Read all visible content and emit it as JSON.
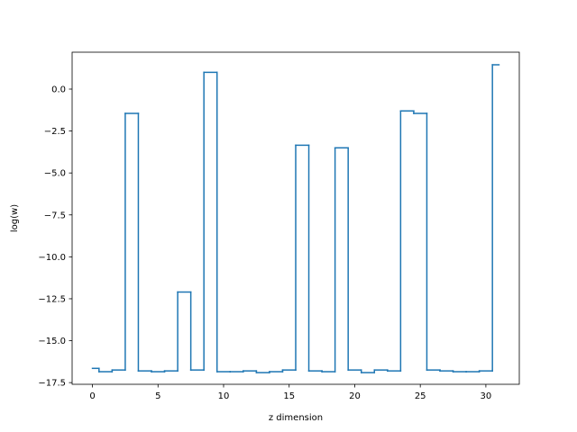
{
  "chart_data": {
    "type": "line",
    "step": "mid",
    "title": "",
    "xlabel": "z dimension",
    "ylabel": "log(w)",
    "xlim": [
      -1.55,
      32.55
    ],
    "ylim": [
      -17.6,
      2.2
    ],
    "grid": false,
    "line_color": "#1f77b4",
    "xticks": [
      0,
      5,
      10,
      15,
      20,
      25,
      30
    ],
    "xtick_labels": [
      "0",
      "5",
      "10",
      "15",
      "20",
      "25",
      "30"
    ],
    "yticks": [
      0.0,
      -2.5,
      -5.0,
      -7.5,
      -10.0,
      -12.5,
      -15.0,
      -17.5
    ],
    "ytick_labels": [
      "0.0",
      "−2.5",
      "−5.0",
      "−7.5",
      "−10.0",
      "−12.5",
      "−15.0",
      "−17.5"
    ],
    "series": [
      {
        "x": [
          0,
          1,
          2,
          3,
          4,
          5,
          6,
          7,
          8,
          9,
          10,
          11,
          12,
          13,
          14,
          15,
          16,
          17,
          18,
          19,
          20,
          21,
          22,
          23,
          24,
          25,
          26,
          27,
          28,
          29,
          30,
          31
        ],
        "y": [
          -16.65,
          -16.85,
          -16.75,
          -1.45,
          -16.8,
          -16.85,
          -16.8,
          -12.1,
          -16.75,
          1.0,
          -16.85,
          -16.85,
          -16.8,
          -16.9,
          -16.85,
          -16.75,
          -3.35,
          -16.8,
          -16.85,
          -3.5,
          -16.75,
          -16.9,
          -16.75,
          -16.8,
          -1.3,
          -1.45,
          -16.75,
          -16.8,
          -16.85,
          -16.85,
          -16.8,
          1.45
        ]
      }
    ]
  }
}
